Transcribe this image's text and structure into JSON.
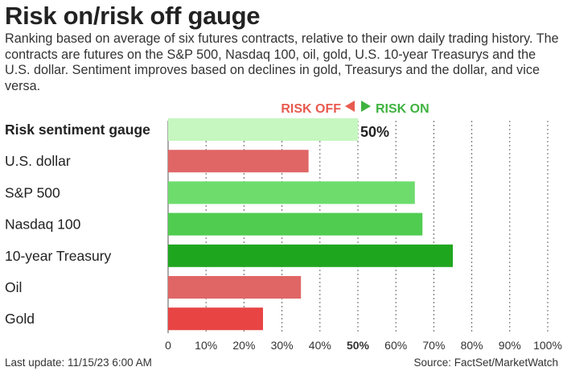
{
  "title": "Risk on/risk off gauge",
  "subtitle": "Ranking based on average of six futures contracts, relative to their own daily trading history. The contracts are futures on the S&P 500, Nasdaq 100, oil, gold, U.S. 10-year Treasurys and the U.S. dollar. Sentiment improves based on declines in gold, Treasurys and the dollar, and vice versa.",
  "legend": {
    "risk_off": "RISK OFF",
    "risk_on": "RISK ON",
    "risk_off_color": "#e85a4f",
    "risk_on_color": "#3fb33f"
  },
  "footer": {
    "last_update": "Last update: 11/15/23 6:00 AM",
    "source": "Source: FactSet/MarketWatch"
  },
  "chart_data": {
    "type": "bar",
    "orientation": "horizontal",
    "categories": [
      "Risk sentiment gauge",
      "U.S. dollar",
      "S&P 500",
      "Nasdaq 100",
      "10-year Treasury",
      "Oil",
      "Gold"
    ],
    "values": [
      50,
      37,
      65,
      67,
      75,
      35,
      25
    ],
    "colors": [
      "#c6f7c0",
      "#e06666",
      "#6ddc6d",
      "#50cc50",
      "#1fa61f",
      "#e06666",
      "#e84444"
    ],
    "bold_categories": [
      "Risk sentiment gauge"
    ],
    "value_labels": [
      {
        "category": "Risk sentiment gauge",
        "label": "50%"
      }
    ],
    "xlim": [
      0,
      100
    ],
    "x_ticks": [
      "0",
      "10%",
      "20%",
      "30%",
      "40%",
      "50%",
      "60%",
      "70%",
      "80%",
      "90%",
      "100%"
    ],
    "bold_tick": "50%",
    "grid": "vertical dashed"
  }
}
